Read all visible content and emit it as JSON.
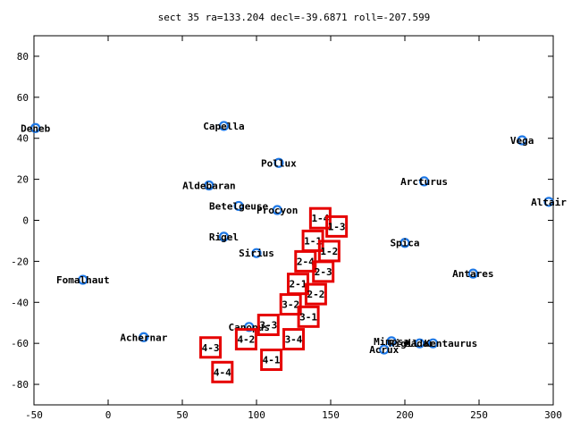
{
  "chart_data": {
    "type": "scatter",
    "title": "sect 35 ra=133.204 decl=-39.6871 roll=-207.599",
    "xlim": [
      -50,
      300
    ],
    "ylim": [
      -90,
      90
    ],
    "xticks": [
      -50,
      0,
      50,
      100,
      150,
      200,
      250,
      300
    ],
    "yticks": [
      -80,
      -60,
      -40,
      -20,
      0,
      20,
      40,
      60,
      80
    ],
    "grid": false,
    "colors": {
      "star": "#1e78e6",
      "box": "#e60000",
      "axis": "#000000"
    },
    "stars": [
      {
        "name": "Deneb",
        "x": -49,
        "y": 45
      },
      {
        "name": "Capella",
        "x": 78,
        "y": 46
      },
      {
        "name": "Vega",
        "x": 279,
        "y": 39
      },
      {
        "name": "Pollux",
        "x": 115,
        "y": 28
      },
      {
        "name": "Arcturus",
        "x": 213,
        "y": 19
      },
      {
        "name": "Aldebaran",
        "x": 68,
        "y": 17
      },
      {
        "name": "Altair",
        "x": 297,
        "y": 9
      },
      {
        "name": "Betelgeuse",
        "x": 88,
        "y": 7
      },
      {
        "name": "Procyon",
        "x": 114,
        "y": 5
      },
      {
        "name": "Rigel",
        "x": 78,
        "y": -8
      },
      {
        "name": "Spica",
        "x": 200,
        "y": -11
      },
      {
        "name": "Sirius",
        "x": 100,
        "y": -16
      },
      {
        "name": "Fomalhaut",
        "x": -17,
        "y": -29
      },
      {
        "name": "Antares",
        "x": 246,
        "y": -26
      },
      {
        "name": "Canopus",
        "x": 95,
        "y": -52
      },
      {
        "name": "Achernar",
        "x": 24,
        "y": -57
      },
      {
        "name": "Mimosa",
        "x": 191,
        "y": -59
      },
      {
        "name": "Hadar",
        "x": 210,
        "y": -60
      },
      {
        "name": "Rigil Kentaurus",
        "x": 219,
        "y": -60
      },
      {
        "name": "Acrux",
        "x": 186,
        "y": -63
      }
    ],
    "star_labels_printed": [
      {
        "text": "Deneb",
        "star": "Deneb"
      },
      {
        "text": "Capella",
        "star": "Capella"
      },
      {
        "text": "Vega",
        "star": "Vega"
      },
      {
        "text": "Pollux",
        "star": "Pollux"
      },
      {
        "text": "Arcturus",
        "star": "Arcturus"
      },
      {
        "text": "Aldebaran",
        "star": "Aldebaran"
      },
      {
        "text": "Altair",
        "star": "Altair"
      },
      {
        "text": "Betelgeuse",
        "star": "Betelgeuse"
      },
      {
        "text": "Procyon",
        "star": "Procyon"
      },
      {
        "text": "Rigel",
        "star": "Rigel"
      },
      {
        "text": "Spica",
        "star": "Spica"
      },
      {
        "text": "Sirius",
        "star": "Sirius"
      },
      {
        "text": "Fomalhaut",
        "star": "Fomalhaut"
      },
      {
        "text": "Antares",
        "star": "Antares"
      },
      {
        "text": "Canopus",
        "star": "Canopus"
      },
      {
        "text": "Achernar",
        "star": "Achernar"
      },
      {
        "text": "Mimosa",
        "star": "Mimosa"
      },
      {
        "text": "Hadar",
        "star": "Hadar"
      },
      {
        "text": "Rigil Kentaurus",
        "star": "Rigil Kentaurus"
      },
      {
        "text": "Acrux",
        "star": "Acrux"
      }
    ],
    "boxes": [
      {
        "label": "1-4",
        "x": 143,
        "y": 1
      },
      {
        "label": "1-3",
        "x": 154,
        "y": -3
      },
      {
        "label": "1-1",
        "x": 138,
        "y": -10
      },
      {
        "label": "1-2",
        "x": 149,
        "y": -15
      },
      {
        "label": "2-4",
        "x": 133,
        "y": -20
      },
      {
        "label": "2-3",
        "x": 145,
        "y": -25
      },
      {
        "label": "2-1",
        "x": 128,
        "y": -31
      },
      {
        "label": "2-2",
        "x": 140,
        "y": -36
      },
      {
        "label": "3-2",
        "x": 123,
        "y": -41
      },
      {
        "label": "3-1",
        "x": 135,
        "y": -47
      },
      {
        "label": "3-3",
        "x": 108,
        "y": -51
      },
      {
        "label": "4-2",
        "x": 93,
        "y": -58
      },
      {
        "label": "3-4",
        "x": 125,
        "y": -58
      },
      {
        "label": "4-3",
        "x": 69,
        "y": -62
      },
      {
        "label": "4-1",
        "x": 110,
        "y": -68
      },
      {
        "label": "4-4",
        "x": 77,
        "y": -74
      }
    ]
  }
}
